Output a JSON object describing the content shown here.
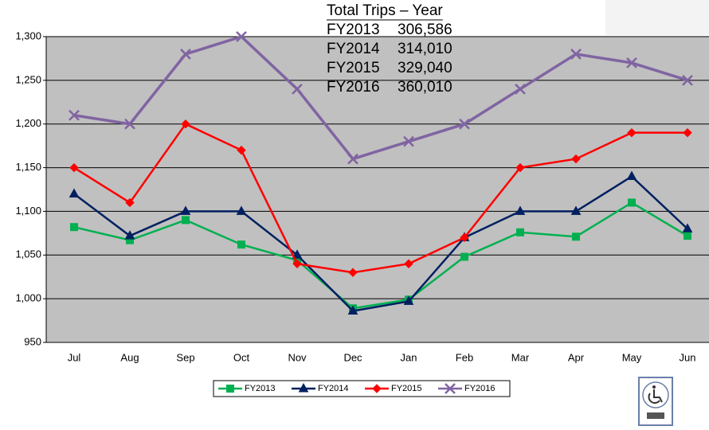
{
  "chart_data": {
    "type": "line",
    "categories": [
      "Jul",
      "Aug",
      "Sep",
      "Oct",
      "Nov",
      "Dec",
      "Jan",
      "Feb",
      "Mar",
      "Apr",
      "May",
      "Jun"
    ],
    "series": [
      {
        "name": "FY2013",
        "color": "#00b050",
        "marker": "square",
        "values": [
          1082,
          1067,
          1090,
          1062,
          1044,
          989,
          999,
          1048,
          1076,
          1071,
          1110,
          1072
        ]
      },
      {
        "name": "FY2014",
        "color": "#002060",
        "marker": "triangle",
        "values": [
          1120,
          1072,
          1100,
          1100,
          1050,
          986,
          997,
          1070,
          1100,
          1100,
          1140,
          1080
        ]
      },
      {
        "name": "FY2015",
        "color": "#ff0000",
        "marker": "diamond",
        "values": [
          1150,
          1110,
          1200,
          1170,
          1040,
          1030,
          1040,
          1070,
          1150,
          1160,
          1190,
          1190
        ]
      },
      {
        "name": "FY2016",
        "color": "#8064a2",
        "marker": "x",
        "values": [
          1210,
          1200,
          1280,
          1300,
          1240,
          1160,
          1180,
          1200,
          1240,
          1280,
          1270,
          1250
        ]
      }
    ],
    "ylim": [
      950,
      1300
    ],
    "yticks": [
      {
        "value": 950,
        "label": "950"
      },
      {
        "value": 1000,
        "label": "1,000"
      },
      {
        "value": 1050,
        "label": "1,050"
      },
      {
        "value": 1100,
        "label": "1,100"
      },
      {
        "value": 1150,
        "label": "1,150"
      },
      {
        "value": 1200,
        "label": "1,200"
      },
      {
        "value": 1250,
        "label": "1,250"
      },
      {
        "value": 1300,
        "label": "1,300"
      }
    ],
    "grid": true,
    "legend": "bottom",
    "annotation": {
      "header": "Total Trips –  Year",
      "rows": [
        [
          "FY2013",
          "306,586"
        ],
        [
          "FY2014",
          "314,010"
        ],
        [
          "FY2015",
          "329,040"
        ],
        [
          "FY2016",
          "360,010"
        ]
      ]
    }
  }
}
